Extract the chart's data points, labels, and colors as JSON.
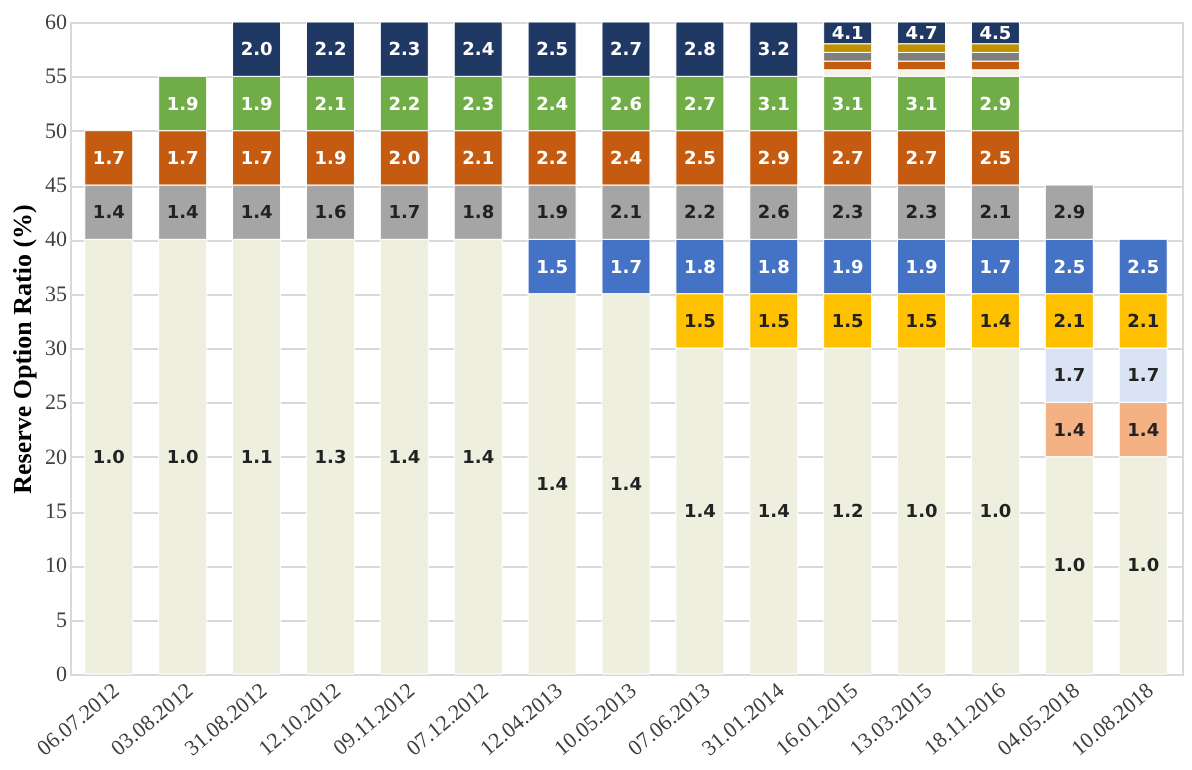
{
  "chart_data": {
    "type": "bar",
    "stacked": true,
    "ylabel": "Reserve Option Ratio (%)",
    "categories": [
      "06.07.2012",
      "03.08.2012",
      "31.08.2012",
      "12.10.2012",
      "09.11.2012",
      "07.12.2012",
      "12.04.2013",
      "10.05.2013",
      "07.06.2013",
      "31.01.2014",
      "16.01.2015",
      "13.03.2015",
      "18.11.2016",
      "04.05.2018",
      "10.08.2018"
    ],
    "ylim": [
      0,
      60
    ],
    "yticks": [
      0,
      5,
      10,
      15,
      20,
      25,
      30,
      35,
      40,
      45,
      50,
      55,
      60
    ],
    "grid": "y",
    "legend": false,
    "series": [
      {
        "color": "#eeefdf",
        "values": [
          40,
          40,
          40,
          40,
          40,
          40,
          35,
          35,
          30,
          30,
          30,
          30,
          30,
          20,
          20
        ]
      },
      {
        "color": "#f4b183",
        "values": [
          null,
          null,
          null,
          null,
          null,
          null,
          null,
          null,
          null,
          null,
          null,
          null,
          null,
          5,
          5
        ]
      },
      {
        "color": "#dae3f3",
        "values": [
          null,
          null,
          null,
          null,
          null,
          null,
          null,
          null,
          null,
          null,
          null,
          null,
          null,
          5,
          5
        ]
      },
      {
        "color": "#ffc000",
        "values": [
          null,
          null,
          null,
          null,
          null,
          null,
          null,
          null,
          5,
          5,
          5,
          5,
          5,
          5,
          5
        ]
      },
      {
        "color": "#4472c4",
        "values": [
          null,
          null,
          null,
          null,
          null,
          null,
          5,
          5,
          5,
          5,
          5,
          5,
          5,
          5,
          5
        ]
      },
      {
        "color": "#a5a5a5",
        "values": [
          5,
          5,
          5,
          5,
          5,
          5,
          5,
          5,
          5,
          5,
          5,
          5,
          5,
          5,
          null
        ]
      },
      {
        "color": "#c55a11",
        "values": [
          5,
          5,
          5,
          5,
          5,
          5,
          5,
          5,
          5,
          5,
          5,
          5,
          5,
          null,
          null
        ]
      },
      {
        "color": "#70ad47",
        "values": [
          null,
          5,
          5,
          5,
          5,
          5,
          5,
          5,
          5,
          5,
          5,
          5,
          5,
          null,
          null
        ]
      },
      {
        "color": "#f2f2e6",
        "values": [
          null,
          null,
          null,
          null,
          null,
          null,
          null,
          null,
          null,
          null,
          0.6,
          0.6,
          0.6,
          null,
          null
        ]
      },
      {
        "color": "#c55a11",
        "values": [
          null,
          null,
          null,
          null,
          null,
          null,
          null,
          null,
          null,
          null,
          0.8,
          0.8,
          0.8,
          null,
          null
        ]
      },
      {
        "color": "#7f7f7f",
        "values": [
          null,
          null,
          null,
          null,
          null,
          null,
          null,
          null,
          null,
          null,
          0.8,
          0.8,
          0.8,
          null,
          null
        ]
      },
      {
        "color": "#bf9000",
        "values": [
          null,
          null,
          null,
          null,
          null,
          null,
          null,
          null,
          null,
          null,
          0.8,
          0.8,
          0.8,
          null,
          null
        ]
      },
      {
        "color": "#203864",
        "values": [
          null,
          null,
          5,
          5,
          5,
          5,
          5,
          5,
          5,
          5,
          2,
          2,
          2,
          null,
          null
        ]
      }
    ],
    "annotations": [
      {
        "text": "1.0",
        "x": "06.07.2012",
        "y": 20
      },
      {
        "text": "1.0",
        "x": "03.08.2012",
        "y": 20
      },
      {
        "text": "1.1",
        "x": "31.08.2012",
        "y": 20
      },
      {
        "text": "1.3",
        "x": "12.10.2012",
        "y": 20
      },
      {
        "text": "1.4",
        "x": "09.11.2012",
        "y": 20
      },
      {
        "text": "1.4",
        "x": "07.12.2012",
        "y": 20
      },
      {
        "text": "1.4",
        "x": "12.04.2013",
        "y": 17.5
      },
      {
        "text": "1.4",
        "x": "10.05.2013",
        "y": 17.5
      },
      {
        "text": "1.4",
        "x": "07.06.2013",
        "y": 15
      },
      {
        "text": "1.4",
        "x": "31.01.2014",
        "y": 15
      },
      {
        "text": "1.2",
        "x": "16.01.2015",
        "y": 15
      },
      {
        "text": "1.0",
        "x": "13.03.2015",
        "y": 15
      },
      {
        "text": "1.0",
        "x": "18.11.2016",
        "y": 15
      },
      {
        "text": "1.0",
        "x": "04.05.2018",
        "y": 10
      },
      {
        "text": "1.0",
        "x": "10.08.2018",
        "y": 10
      },
      {
        "text": "1.4",
        "x": "04.05.2018",
        "y": 22.5
      },
      {
        "text": "1.4",
        "x": "10.08.2018",
        "y": 22.5
      },
      {
        "text": "1.7",
        "x": "04.05.2018",
        "y": 27.5
      },
      {
        "text": "1.7",
        "x": "10.08.2018",
        "y": 27.5
      },
      {
        "text": "1.5",
        "x": "07.06.2013",
        "y": 32.5
      },
      {
        "text": "1.5",
        "x": "31.01.2014",
        "y": 32.5
      },
      {
        "text": "1.5",
        "x": "16.01.2015",
        "y": 32.5
      },
      {
        "text": "1.5",
        "x": "13.03.2015",
        "y": 32.5
      },
      {
        "text": "1.4",
        "x": "18.11.2016",
        "y": 32.5
      },
      {
        "text": "2.1",
        "x": "04.05.2018",
        "y": 32.5
      },
      {
        "text": "2.1",
        "x": "10.08.2018",
        "y": 32.5
      },
      {
        "text": "1.5",
        "x": "12.04.2013",
        "y": 37.5
      },
      {
        "text": "1.7",
        "x": "10.05.2013",
        "y": 37.5
      },
      {
        "text": "1.8",
        "x": "07.06.2013",
        "y": 37.5
      },
      {
        "text": "1.8",
        "x": "31.01.2014",
        "y": 37.5
      },
      {
        "text": "1.9",
        "x": "16.01.2015",
        "y": 37.5
      },
      {
        "text": "1.9",
        "x": "13.03.2015",
        "y": 37.5
      },
      {
        "text": "1.7",
        "x": "18.11.2016",
        "y": 37.5
      },
      {
        "text": "2.5",
        "x": "04.05.2018",
        "y": 37.5
      },
      {
        "text": "2.5",
        "x": "10.08.2018",
        "y": 37.5
      },
      {
        "text": "1.4",
        "x": "06.07.2012",
        "y": 42.5
      },
      {
        "text": "1.4",
        "x": "03.08.2012",
        "y": 42.5
      },
      {
        "text": "1.4",
        "x": "31.08.2012",
        "y": 42.5
      },
      {
        "text": "1.6",
        "x": "12.10.2012",
        "y": 42.5
      },
      {
        "text": "1.7",
        "x": "09.11.2012",
        "y": 42.5
      },
      {
        "text": "1.8",
        "x": "07.12.2012",
        "y": 42.5
      },
      {
        "text": "1.9",
        "x": "12.04.2013",
        "y": 42.5
      },
      {
        "text": "2.1",
        "x": "10.05.2013",
        "y": 42.5
      },
      {
        "text": "2.2",
        "x": "07.06.2013",
        "y": 42.5
      },
      {
        "text": "2.6",
        "x": "31.01.2014",
        "y": 42.5
      },
      {
        "text": "2.3",
        "x": "16.01.2015",
        "y": 42.5
      },
      {
        "text": "2.3",
        "x": "13.03.2015",
        "y": 42.5
      },
      {
        "text": "2.1",
        "x": "18.11.2016",
        "y": 42.5
      },
      {
        "text": "2.9",
        "x": "04.05.2018",
        "y": 42.5
      },
      {
        "text": "1.7",
        "x": "06.07.2012",
        "y": 47.5
      },
      {
        "text": "1.7",
        "x": "03.08.2012",
        "y": 47.5
      },
      {
        "text": "1.7",
        "x": "31.08.2012",
        "y": 47.5
      },
      {
        "text": "1.9",
        "x": "12.10.2012",
        "y": 47.5
      },
      {
        "text": "2.0",
        "x": "09.11.2012",
        "y": 47.5
      },
      {
        "text": "2.1",
        "x": "07.12.2012",
        "y": 47.5
      },
      {
        "text": "2.2",
        "x": "12.04.2013",
        "y": 47.5
      },
      {
        "text": "2.4",
        "x": "10.05.2013",
        "y": 47.5
      },
      {
        "text": "2.5",
        "x": "07.06.2013",
        "y": 47.5
      },
      {
        "text": "2.9",
        "x": "31.01.2014",
        "y": 47.5
      },
      {
        "text": "2.7",
        "x": "16.01.2015",
        "y": 47.5
      },
      {
        "text": "2.7",
        "x": "13.03.2015",
        "y": 47.5
      },
      {
        "text": "2.5",
        "x": "18.11.2016",
        "y": 47.5
      },
      {
        "text": "1.9",
        "x": "03.08.2012",
        "y": 52.5
      },
      {
        "text": "1.9",
        "x": "31.08.2012",
        "y": 52.5
      },
      {
        "text": "2.1",
        "x": "12.10.2012",
        "y": 52.5
      },
      {
        "text": "2.2",
        "x": "09.11.2012",
        "y": 52.5
      },
      {
        "text": "2.3",
        "x": "07.12.2012",
        "y": 52.5
      },
      {
        "text": "2.4",
        "x": "12.04.2013",
        "y": 52.5
      },
      {
        "text": "2.6",
        "x": "10.05.2013",
        "y": 52.5
      },
      {
        "text": "2.7",
        "x": "07.06.2013",
        "y": 52.5
      },
      {
        "text": "3.1",
        "x": "31.01.2014",
        "y": 52.5
      },
      {
        "text": "3.1",
        "x": "16.01.2015",
        "y": 52.5
      },
      {
        "text": "3.1",
        "x": "13.03.2015",
        "y": 52.5
      },
      {
        "text": "2.9",
        "x": "18.11.2016",
        "y": 52.5
      },
      {
        "text": "2.0",
        "x": "31.08.2012",
        "y": 57.5
      },
      {
        "text": "2.2",
        "x": "12.10.2012",
        "y": 57.5
      },
      {
        "text": "2.3",
        "x": "09.11.2012",
        "y": 57.5
      },
      {
        "text": "2.4",
        "x": "07.12.2012",
        "y": 57.5
      },
      {
        "text": "2.5",
        "x": "12.04.2013",
        "y": 57.5
      },
      {
        "text": "2.7",
        "x": "10.05.2013",
        "y": 57.5
      },
      {
        "text": "2.8",
        "x": "07.06.2013",
        "y": 57.5
      },
      {
        "text": "3.2",
        "x": "31.01.2014",
        "y": 57.5
      },
      {
        "text": "4.1",
        "x": "16.01.2015",
        "y": 59
      },
      {
        "text": "4.7",
        "x": "13.03.2015",
        "y": 59
      },
      {
        "text": "4.5",
        "x": "18.11.2016",
        "y": 59
      }
    ]
  }
}
